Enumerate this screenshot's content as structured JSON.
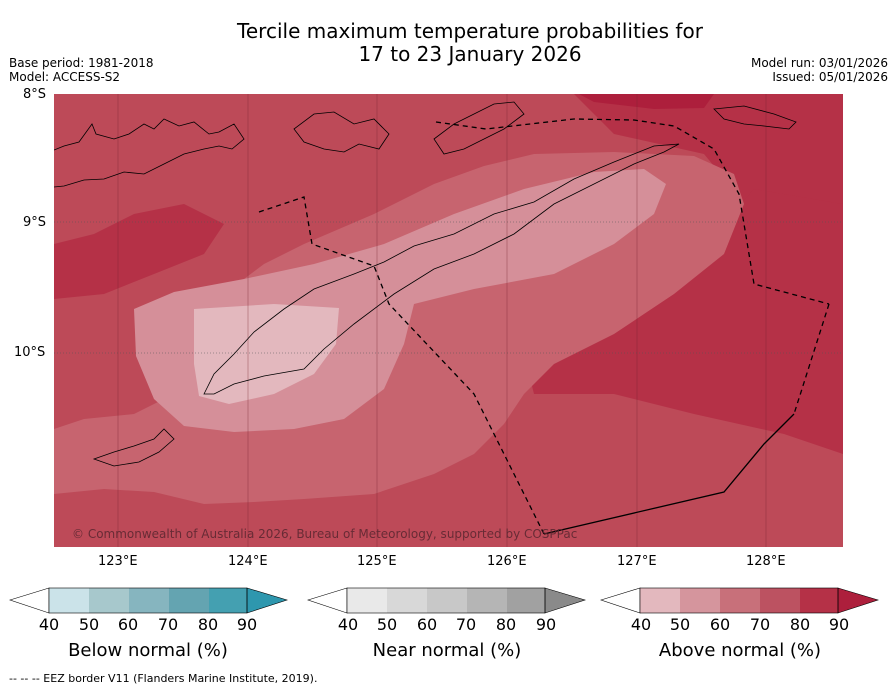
{
  "title": {
    "line1": "Tercile maximum temperature probabilities for",
    "line2": "17 to 23 January 2026"
  },
  "meta": {
    "base_period": "Base period: 1981-2018",
    "model": "Model: ACCESS-S2",
    "model_run": "Model run: 03/01/2026",
    "issued": "Issued: 05/01/2026"
  },
  "map": {
    "lat_labels": [
      "8°S",
      "9°S",
      "10°S"
    ],
    "lon_labels": [
      "123°E",
      "124°E",
      "125°E",
      "126°E",
      "127°E",
      "128°E"
    ],
    "copyright": "© Commonwealth of Australia 2026, Bureau of Meteorology, supported by COSPPac",
    "colors": {
      "above_60_70": "#c7646f",
      "above_70_80": "#bd4a58",
      "above_80_90": "#b53147",
      "above_90": "#ad1f3c",
      "above_50_60": "#d58f99",
      "above_40_50": "#e3b8be"
    }
  },
  "colorbars": [
    {
      "label": "Below normal (%)",
      "ticks": [
        "40",
        "50",
        "60",
        "70",
        "80",
        "90"
      ],
      "colors": [
        "#ffffff",
        "#cbe3e9",
        "#a7c8cc",
        "#86b5bf",
        "#64a4b1",
        "#44a0b1",
        "#2e97ae"
      ]
    },
    {
      "label": "Near normal (%)",
      "ticks": [
        "40",
        "50",
        "60",
        "70",
        "80",
        "90"
      ],
      "colors": [
        "#ffffff",
        "#e9e9e9",
        "#d8d8d8",
        "#c8c8c8",
        "#b5b5b5",
        "#a1a1a1",
        "#8a8a8a"
      ]
    },
    {
      "label": "Above normal (%)",
      "ticks": [
        "40",
        "50",
        "60",
        "70",
        "80",
        "90"
      ],
      "colors": [
        "#ffffff",
        "#e3b8be",
        "#d5959d",
        "#c8707a",
        "#bc5261",
        "#b53147",
        "#ad1f3c"
      ]
    }
  ],
  "footer": "--  --  -- EEZ border V11 (Flanders Marine Institute, 2019)."
}
